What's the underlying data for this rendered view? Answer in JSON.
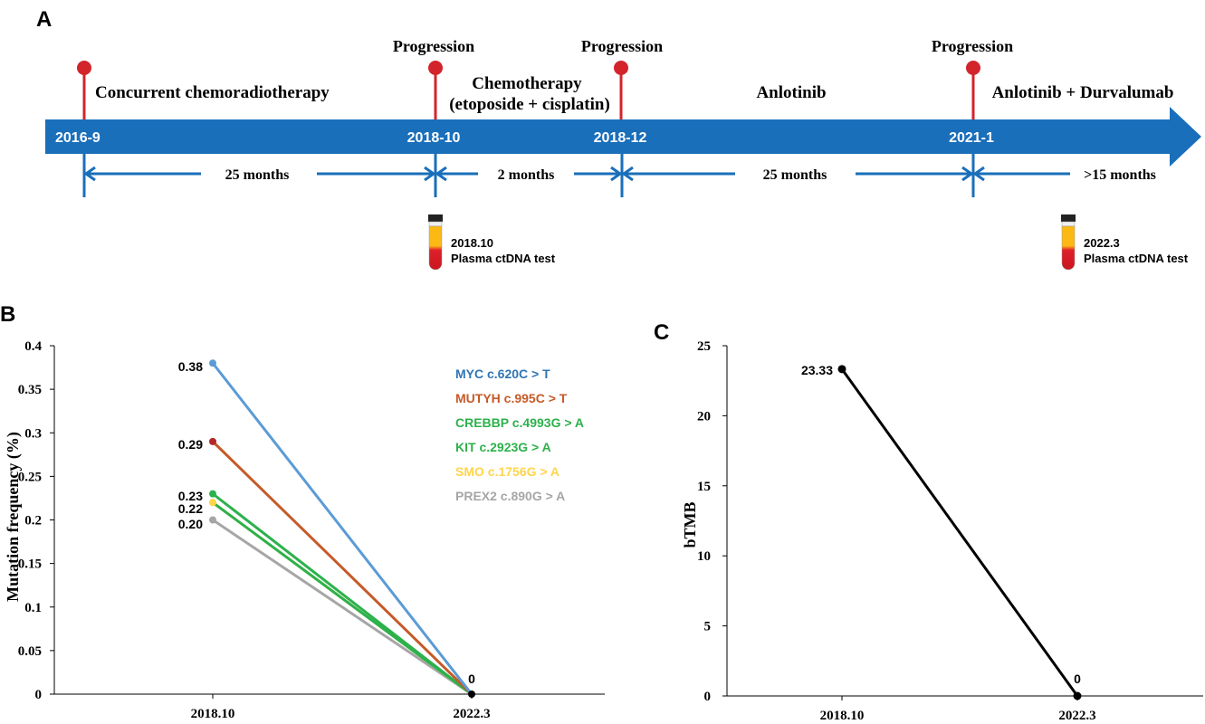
{
  "panels": {
    "a": "A",
    "b": "B",
    "c": "C"
  },
  "timeline": {
    "arrow_color": "#1a6fba",
    "marker_color": "#d3242b",
    "dates": [
      "2016-9",
      "2018-10",
      "2018-12",
      "2021-1"
    ],
    "progression_labels": [
      "Progression",
      "Progression",
      "Progression"
    ],
    "treatments": {
      "first": "Concurrent chemoradiotherapy",
      "second_line1": "Chemotherapy",
      "second_line2": "(etoposide + cisplatin)",
      "third": "Anlotinib",
      "fourth": "Anlotinib + Durvalumab"
    },
    "durations": [
      "25 months",
      "2 months",
      "25 months",
      ">15 months"
    ],
    "tests": [
      {
        "date": "2018.10",
        "label": "Plasma ctDNA test"
      },
      {
        "date": "2022.3",
        "label": "Plasma ctDNA test"
      }
    ]
  },
  "chart_data": [
    {
      "type": "line",
      "ylabel": "Mutation frequency (%)",
      "xlabel": "",
      "categories": [
        "2018.10",
        "2022.3"
      ],
      "ylim": [
        0,
        0.4
      ],
      "yticks": [
        0,
        0.05,
        0.1,
        0.15,
        0.2,
        0.25,
        0.3,
        0.35,
        0.4
      ],
      "ytick_labels": [
        "0",
        "0.05",
        "0.1",
        "0.15",
        "0.2",
        "0.25",
        "0.3",
        "0.35",
        "0.4"
      ],
      "series": [
        {
          "name": "MYC c.620C > T",
          "values": [
            0.38,
            0
          ],
          "color": "#5b9bd5",
          "label_color": "#2f75b6",
          "point_color": "#5b9bd5",
          "start_label": "0.38"
        },
        {
          "name": "MUTYH c.995C > T",
          "values": [
            0.29,
            0
          ],
          "color": "#c55a28",
          "label_color": "#c55a28",
          "point_color": "#b5262b",
          "start_label": "0.29"
        },
        {
          "name": "CREBBP c.4993G > A",
          "values": [
            0.23,
            0
          ],
          "color": "#2db14c",
          "label_color": "#2db14c",
          "point_color": "#2db14c",
          "start_label": "0.23"
        },
        {
          "name": "KIT c.2923G > A",
          "values": [
            0.22,
            0
          ],
          "color": "#2db14c",
          "label_color": "#2db14c",
          "point_color": "#ffd54a",
          "start_label": "0.22"
        },
        {
          "name": "SMO c.1756G > A",
          "values": [
            0.22,
            0
          ],
          "color": "#ffd54a",
          "label_color": "#ffd54a",
          "point_color": "#ffd54a",
          "start_label": ""
        },
        {
          "name": "PREX2 c.890G > A",
          "values": [
            0.2,
            0
          ],
          "color": "#a6a6a6",
          "label_color": "#a6a6a6",
          "point_color": "#a6a6a6",
          "start_label": "0.20"
        }
      ],
      "end_label": "0"
    },
    {
      "type": "line",
      "ylabel": "bTMB",
      "xlabel": "",
      "categories": [
        "2018.10",
        "2022.3"
      ],
      "ylim": [
        0,
        25
      ],
      "yticks": [
        0,
        5,
        10,
        15,
        20,
        25
      ],
      "ytick_labels": [
        "0",
        "5",
        "10",
        "15",
        "20",
        "25"
      ],
      "series": [
        {
          "name": "bTMB",
          "values": [
            23.33,
            0
          ],
          "color": "#000000",
          "labels": [
            "23.33",
            "0"
          ]
        }
      ]
    }
  ]
}
